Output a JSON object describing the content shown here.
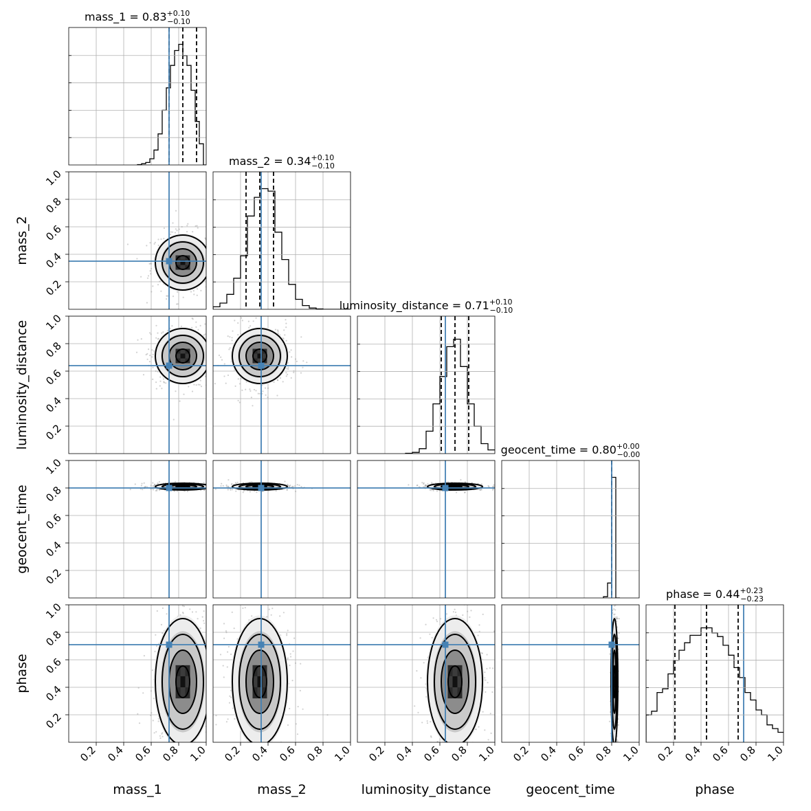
{
  "chart_data": {
    "type": "corner",
    "parameters": [
      "mass_1",
      "mass_2",
      "luminosity_distance",
      "geocent_time",
      "phase"
    ],
    "axis_range": [
      0.0,
      1.0
    ],
    "tick_values": [
      0.2,
      0.4,
      0.6,
      0.8,
      1.0
    ],
    "tick_labels": [
      "0.2",
      "0.4",
      "0.6",
      "0.8",
      "1.0"
    ],
    "truths": [
      0.73,
      0.35,
      0.64,
      0.8,
      0.71
    ],
    "truth_color": "#4682b4",
    "grid": true,
    "titles": [
      {
        "param": "mass_1",
        "prefix": "mass_1 = 0.83",
        "plus": "+0.10",
        "minus": "−0.10"
      },
      {
        "param": "mass_2",
        "prefix": "mass_2 = 0.34",
        "plus": "+0.10",
        "minus": "−0.10"
      },
      {
        "param": "luminosity_distance",
        "prefix": "luminosity_distance = 0.71",
        "plus": "+0.10",
        "minus": "−0.10"
      },
      {
        "param": "geocent_time",
        "prefix": "geocent_time = 0.80",
        "plus": "+0.00",
        "minus": "−0.00"
      },
      {
        "param": "phase",
        "prefix": "phase = 0.44",
        "plus": "+0.23",
        "minus": "−0.23"
      }
    ],
    "quantiles": [
      [
        0.73,
        0.83,
        0.93
      ],
      [
        0.24,
        0.34,
        0.44
      ],
      [
        0.61,
        0.71,
        0.81
      ],
      [
        0.8,
        0.8,
        0.8
      ],
      [
        0.21,
        0.44,
        0.67
      ]
    ],
    "histograms": [
      {
        "param": "mass_1",
        "edges": [
          0.5,
          0.53,
          0.56,
          0.59,
          0.62,
          0.65,
          0.68,
          0.71,
          0.74,
          0.77,
          0.8,
          0.83,
          0.86,
          0.89,
          0.92,
          0.95,
          0.98,
          1.0
        ],
        "counts": [
          0.003,
          0.01,
          0.02,
          0.05,
          0.12,
          0.25,
          0.44,
          0.62,
          0.8,
          0.92,
          0.97,
          0.88,
          0.8,
          0.6,
          0.35,
          0.17,
          0.0
        ]
      },
      {
        "param": "mass_2",
        "edges": [
          0.0,
          0.05,
          0.1,
          0.15,
          0.2,
          0.25,
          0.3,
          0.35,
          0.4,
          0.45,
          0.5,
          0.55,
          0.6,
          0.65,
          0.7,
          0.75,
          0.8,
          0.85,
          0.9,
          0.95,
          1.0
        ],
        "counts": [
          0.02,
          0.05,
          0.12,
          0.25,
          0.43,
          0.75,
          0.9,
          0.97,
          0.95,
          0.62,
          0.4,
          0.2,
          0.08,
          0.03,
          0.01,
          0.003,
          0.0,
          0.0,
          0.0,
          0.0
        ]
      },
      {
        "param": "luminosity_distance",
        "edges": [
          0.35,
          0.4,
          0.45,
          0.5,
          0.55,
          0.6,
          0.65,
          0.7,
          0.75,
          0.8,
          0.85,
          0.9,
          0.95,
          1.0
        ],
        "counts": [
          0.003,
          0.01,
          0.04,
          0.18,
          0.4,
          0.62,
          0.86,
          0.92,
          0.7,
          0.4,
          0.22,
          0.08,
          0.03
        ]
      },
      {
        "param": "geocent_time",
        "edges": [
          0.74,
          0.77,
          0.8,
          0.83,
          0.86
        ],
        "counts": [
          0.01,
          0.12,
          0.97,
          0.0
        ]
      },
      {
        "param": "phase",
        "edges": [
          0.0,
          0.04,
          0.08,
          0.12,
          0.16,
          0.2,
          0.24,
          0.28,
          0.32,
          0.36,
          0.4,
          0.44,
          0.48,
          0.52,
          0.56,
          0.6,
          0.64,
          0.68,
          0.72,
          0.76,
          0.8,
          0.84,
          0.88,
          0.92,
          0.96,
          1.0
        ],
        "counts": [
          0.22,
          0.25,
          0.4,
          0.43,
          0.55,
          0.66,
          0.74,
          0.8,
          0.86,
          0.86,
          0.92,
          0.92,
          0.88,
          0.85,
          0.78,
          0.7,
          0.6,
          0.52,
          0.4,
          0.34,
          0.26,
          0.22,
          0.14,
          0.11,
          0.08
        ]
      }
    ],
    "pairs": [
      {
        "x": "mass_1",
        "y": "mass_2",
        "center": [
          0.83,
          0.34
        ],
        "sigma": [
          0.1,
          0.1
        ]
      },
      {
        "x": "mass_1",
        "y": "luminosity_distance",
        "center": [
          0.83,
          0.71
        ],
        "sigma": [
          0.1,
          0.1
        ]
      },
      {
        "x": "mass_2",
        "y": "luminosity_distance",
        "center": [
          0.34,
          0.71
        ],
        "sigma": [
          0.1,
          0.1
        ]
      },
      {
        "x": "mass_1",
        "y": "geocent_time",
        "center": [
          0.83,
          0.81
        ],
        "sigma": [
          0.1,
          0.012
        ]
      },
      {
        "x": "mass_2",
        "y": "geocent_time",
        "center": [
          0.34,
          0.81
        ],
        "sigma": [
          0.1,
          0.012
        ]
      },
      {
        "x": "luminosity_distance",
        "y": "geocent_time",
        "center": [
          0.71,
          0.81
        ],
        "sigma": [
          0.1,
          0.012
        ]
      },
      {
        "x": "mass_1",
        "y": "phase",
        "center": [
          0.83,
          0.44
        ],
        "sigma": [
          0.1,
          0.23
        ]
      },
      {
        "x": "mass_2",
        "y": "phase",
        "center": [
          0.34,
          0.44
        ],
        "sigma": [
          0.1,
          0.23
        ]
      },
      {
        "x": "luminosity_distance",
        "y": "phase",
        "center": [
          0.71,
          0.44
        ],
        "sigma": [
          0.1,
          0.23
        ]
      },
      {
        "x": "geocent_time",
        "y": "phase",
        "center": [
          0.82,
          0.44
        ],
        "sigma": [
          0.012,
          0.23
        ]
      }
    ]
  }
}
